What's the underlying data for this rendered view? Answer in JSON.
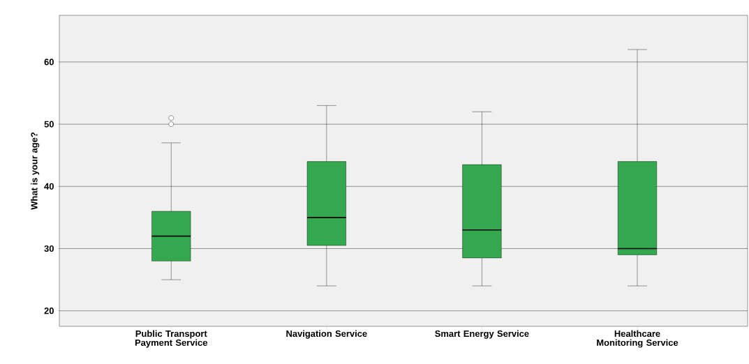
{
  "chart_data": {
    "type": "box",
    "ylabel": "What is your age?",
    "categories": [
      "Public Transport Payment Service",
      "Navigation Service",
      "Smart Energy Service",
      "Healthcare Monitoring Service"
    ],
    "boxes": [
      {
        "low": 25,
        "q1": 28,
        "median": 32,
        "q3": 36,
        "high": 47,
        "outliers": [
          50,
          51
        ]
      },
      {
        "low": 24,
        "q1": 30.5,
        "median": 35,
        "q3": 44,
        "high": 53
      },
      {
        "low": 24,
        "q1": 28.5,
        "median": 33,
        "q3": 43.5,
        "high": 52
      },
      {
        "low": 24,
        "q1": 29,
        "median": 30,
        "q3": 44,
        "high": 62
      }
    ],
    "color": "#33a84f",
    "ylim": [
      17.5,
      67.5
    ],
    "yticks": [
      20,
      30,
      40,
      50,
      60
    ],
    "grid": "y"
  }
}
